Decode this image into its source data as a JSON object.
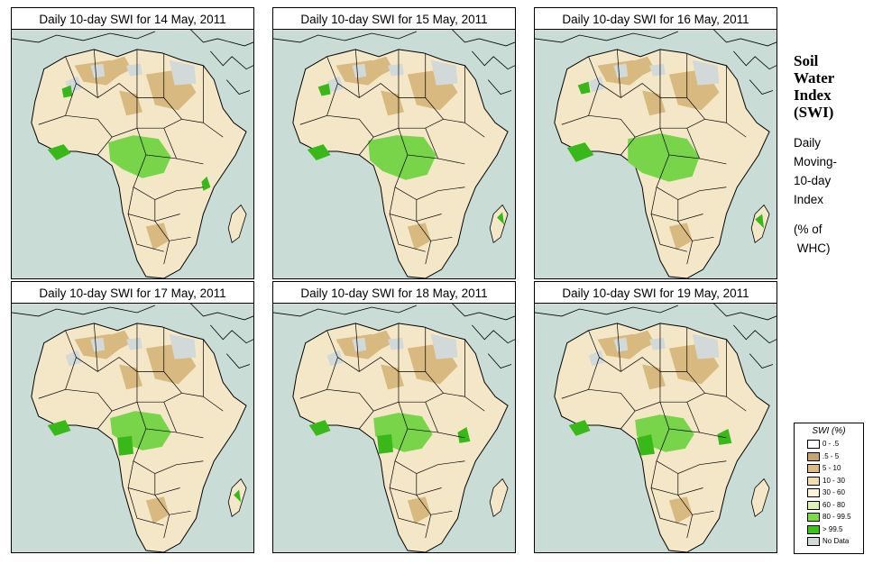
{
  "panels": [
    {
      "title": "Daily 10-day SWI for  14 May, 2011"
    },
    {
      "title": "Daily 10-day SWI for  15 May, 2011"
    },
    {
      "title": "Daily 10-day SWI for  16 May, 2011"
    },
    {
      "title": "Daily 10-day SWI for  17 May, 2011"
    },
    {
      "title": "Daily 10-day SWI for  18 May, 2011"
    },
    {
      "title": "Daily 10-day SWI for  19 May, 2011"
    }
  ],
  "side": {
    "title_lines": [
      "Soil",
      "Water",
      "Index",
      "(SWI)"
    ],
    "desc_lines": [
      "Daily",
      "Moving-",
      "10-day",
      "Index"
    ],
    "unit_lines": [
      "(% of",
      " WHC)"
    ]
  },
  "legend": {
    "title": "SWI (%)",
    "items": [
      {
        "label": "0 - .5",
        "color": "#ffffff"
      },
      {
        "label": ".5 - 5",
        "color": "#c8a46a"
      },
      {
        "label": "5 - 10",
        "color": "#dcbb85"
      },
      {
        "label": "10 - 30",
        "color": "#f0dcb0"
      },
      {
        "label": "30 - 60",
        "color": "#fbf3dc"
      },
      {
        "label": "60 - 80",
        "color": "#ddf2b6"
      },
      {
        "label": "80 - 99.5",
        "color": "#7bd94a"
      },
      {
        "label": "> 99.5",
        "color": "#3ec21c"
      },
      {
        "label": "No Data",
        "color": "#d2dad9"
      }
    ]
  },
  "colors": {
    "ocean": "#c9ddd6",
    "land": "#f4e7c8",
    "desert": "#d8b97f",
    "green": "#78d448",
    "dark_green": "#39b81a",
    "nodata": "#d2dad9",
    "border": "#000000"
  }
}
